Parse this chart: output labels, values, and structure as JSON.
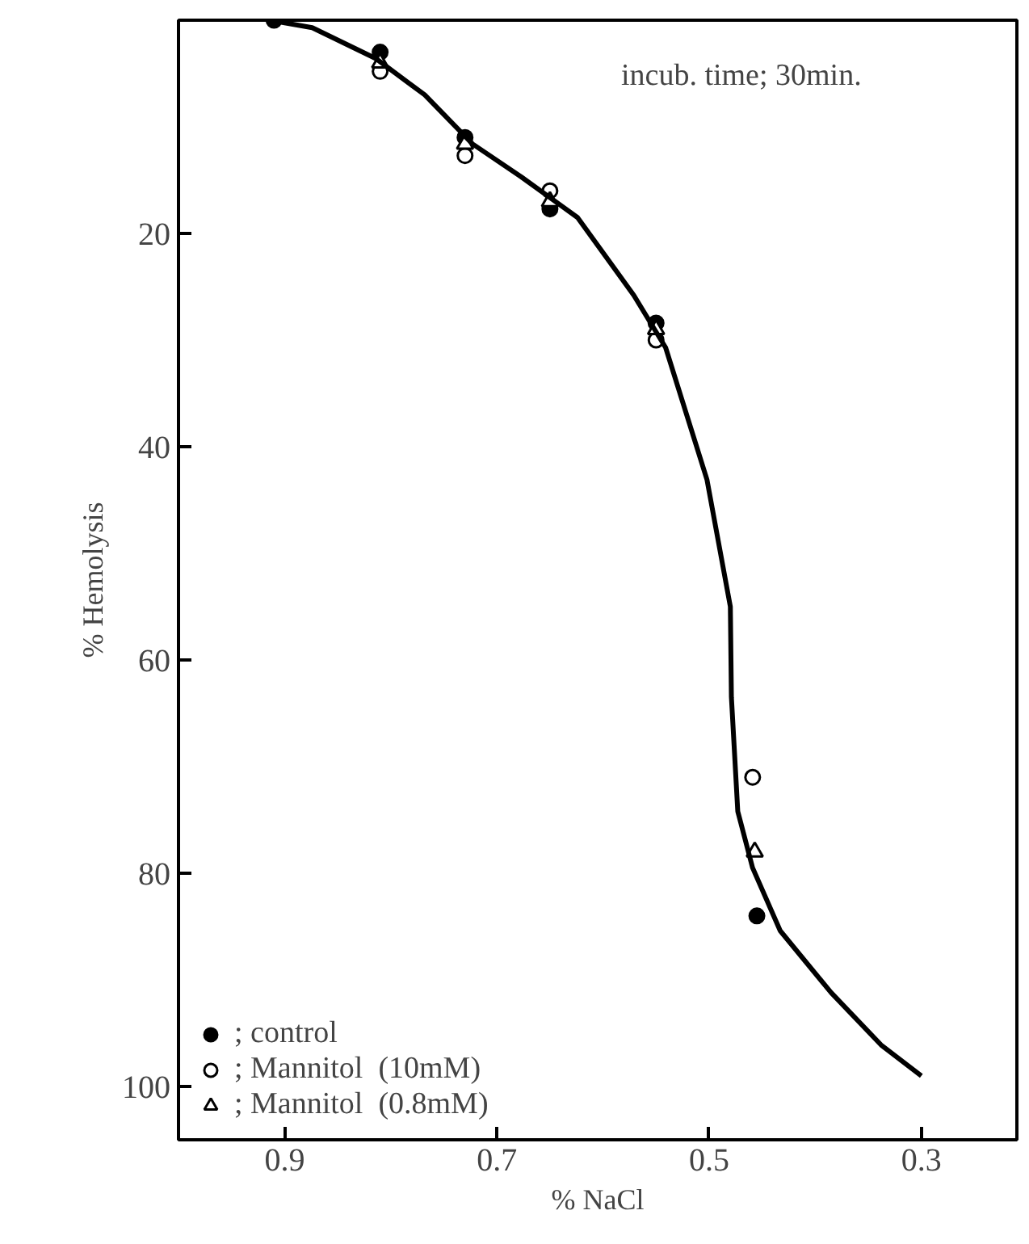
{
  "chart_data": {
    "type": "scatter",
    "xlabel": "% NaCl",
    "ylabel": "% Hemolysis",
    "annotations": [
      "incub. time; 30min."
    ],
    "xlim": [
      1.0,
      0.21
    ],
    "xticks": [
      0.9,
      0.7,
      0.5,
      0.3
    ],
    "ylim": [
      105,
      0
    ],
    "yticks": [
      20,
      40,
      60,
      80,
      100
    ],
    "grid": false,
    "legend": "bottom left",
    "series": [
      {
        "name": "; control",
        "color": "#000000",
        "marker": "circle",
        "x": [
          0.91,
          0.81,
          0.73,
          0.65,
          0.55,
          0.455
        ],
        "values": [
          0,
          3,
          11,
          17.7,
          28.4,
          84
        ]
      },
      {
        "name": "; Mannitol  (10mM)",
        "color": "#000000",
        "marker": "circle",
        "x": [
          0.81,
          0.73,
          0.65,
          0.55,
          0.459
        ],
        "values": [
          4.8,
          12.7,
          16,
          30,
          71
        ]
      },
      {
        "name": "; Mannitol  (0.8mM)",
        "color": "#000000",
        "marker": "triangle",
        "x": [
          0.81,
          0.73,
          0.65,
          0.55,
          0.457
        ],
        "values": [
          4,
          11.6,
          17,
          29,
          78
        ]
      },
      {
        "type": "line",
        "color": "#000000",
        "line_style": "solid",
        "x": [
          0.914,
          0.874,
          0.814,
          0.768,
          0.723,
          0.677,
          0.624,
          0.571,
          0.541,
          0.502,
          0.48,
          0.479,
          0.473,
          0.459,
          0.433,
          0.385,
          0.338,
          0.3
        ],
        "values": [
          0,
          0.7,
          3.6,
          7,
          11.6,
          14.7,
          18.5,
          25.8,
          30.7,
          43.1,
          55,
          63.5,
          74.2,
          79.5,
          85.4,
          91.2,
          96.1,
          99
        ]
      }
    ]
  }
}
